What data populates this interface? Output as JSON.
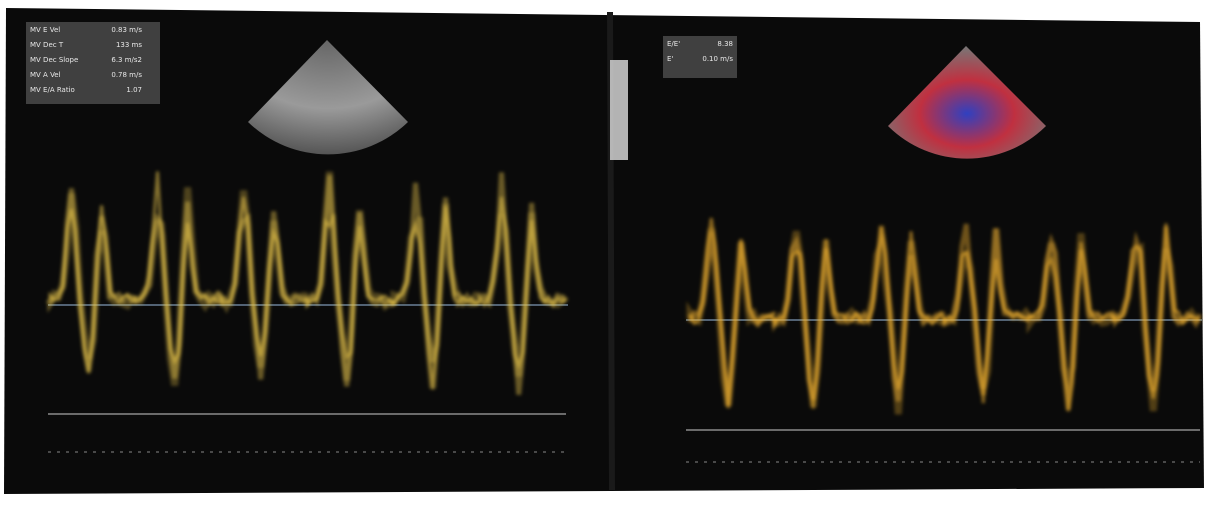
{
  "left_panel": {
    "measurements": [
      {
        "label": "MV E Vel",
        "value": "0.83 m/s"
      },
      {
        "label": "MV Dec T",
        "value": "133 ms"
      },
      {
        "label": "MV Dec Slope",
        "value": "6.3 m/s2"
      },
      {
        "label": "MV A Vel",
        "value": "0.78 m/s"
      },
      {
        "label": "MV E/A Ratio",
        "value": "1.07"
      }
    ]
  },
  "right_panel": {
    "measurements": [
      {
        "label": "E/E'",
        "value": "8.38"
      },
      {
        "label": "E'",
        "value": "0.10 m/s"
      }
    ]
  }
}
